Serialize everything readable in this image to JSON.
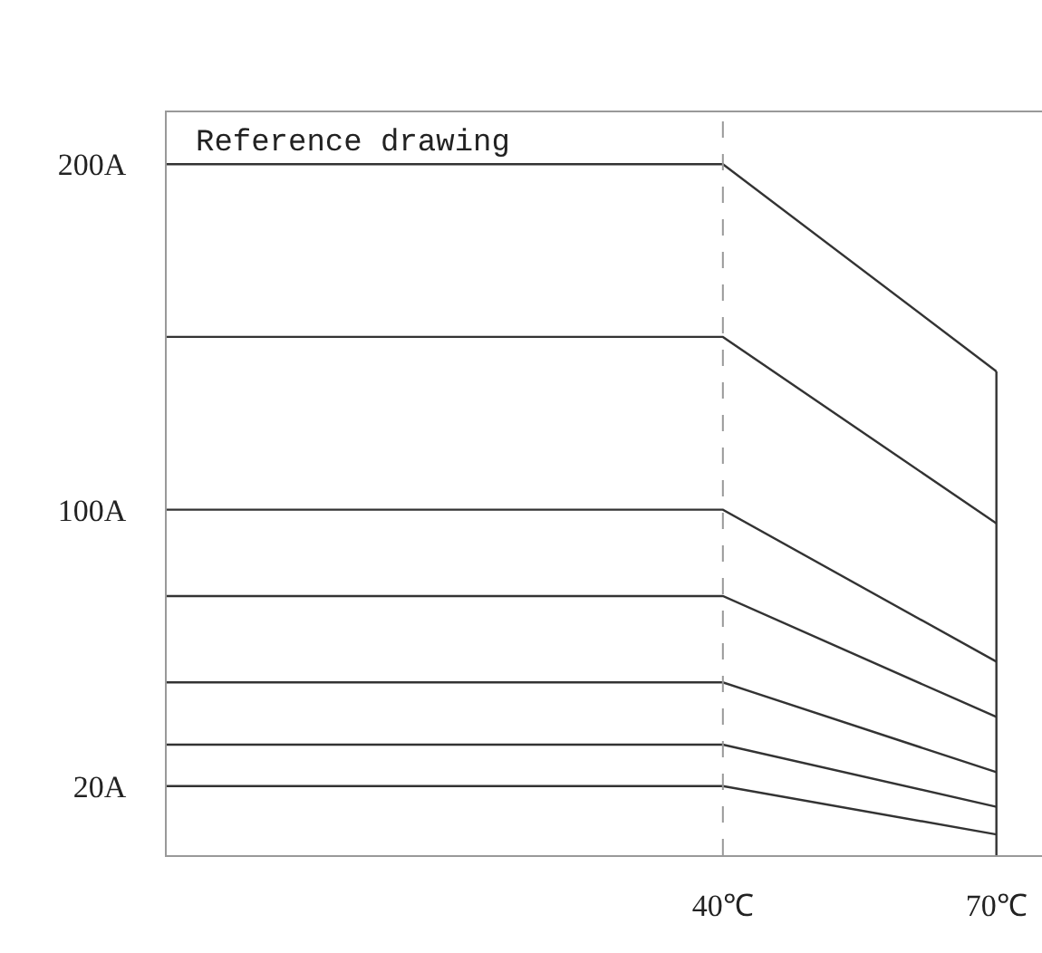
{
  "chart_data": {
    "type": "line",
    "annotations": [
      "Reference drawing"
    ],
    "x": [
      -21,
      40,
      70
    ],
    "series": [
      {
        "color": "#333333",
        "values": [
          200,
          200,
          140
        ]
      },
      {
        "color": "#333333",
        "values": [
          150,
          150,
          96
        ]
      },
      {
        "color": "#333333",
        "values": [
          100,
          100,
          56
        ]
      },
      {
        "color": "#333333",
        "values": [
          75,
          75,
          40
        ]
      },
      {
        "color": "#333333",
        "values": [
          50,
          50,
          24
        ]
      },
      {
        "color": "#333333",
        "values": [
          32,
          32,
          14
        ]
      },
      {
        "color": "#333333",
        "values": [
          20,
          20,
          6
        ]
      },
      {
        "color": "#333333",
        "x": [
          70,
          70
        ],
        "values": [
          0,
          140
        ]
      }
    ],
    "xlim": [
      -21,
      75
    ],
    "xticks": [
      {
        "value": 40,
        "label": "40℃"
      },
      {
        "value": 70,
        "label": "70℃"
      }
    ],
    "ylim": [
      0,
      215
    ],
    "yticks": [
      {
        "value": 20,
        "label": "20A"
      },
      {
        "value": 100,
        "label": "100A"
      },
      {
        "value": 200,
        "label": "200A"
      }
    ],
    "ref_lines": [
      {
        "axis": "x",
        "value": 40,
        "color": "#999999",
        "line_style": "dashed"
      }
    ],
    "grid": false,
    "marker": "none",
    "line_style": "solid"
  }
}
